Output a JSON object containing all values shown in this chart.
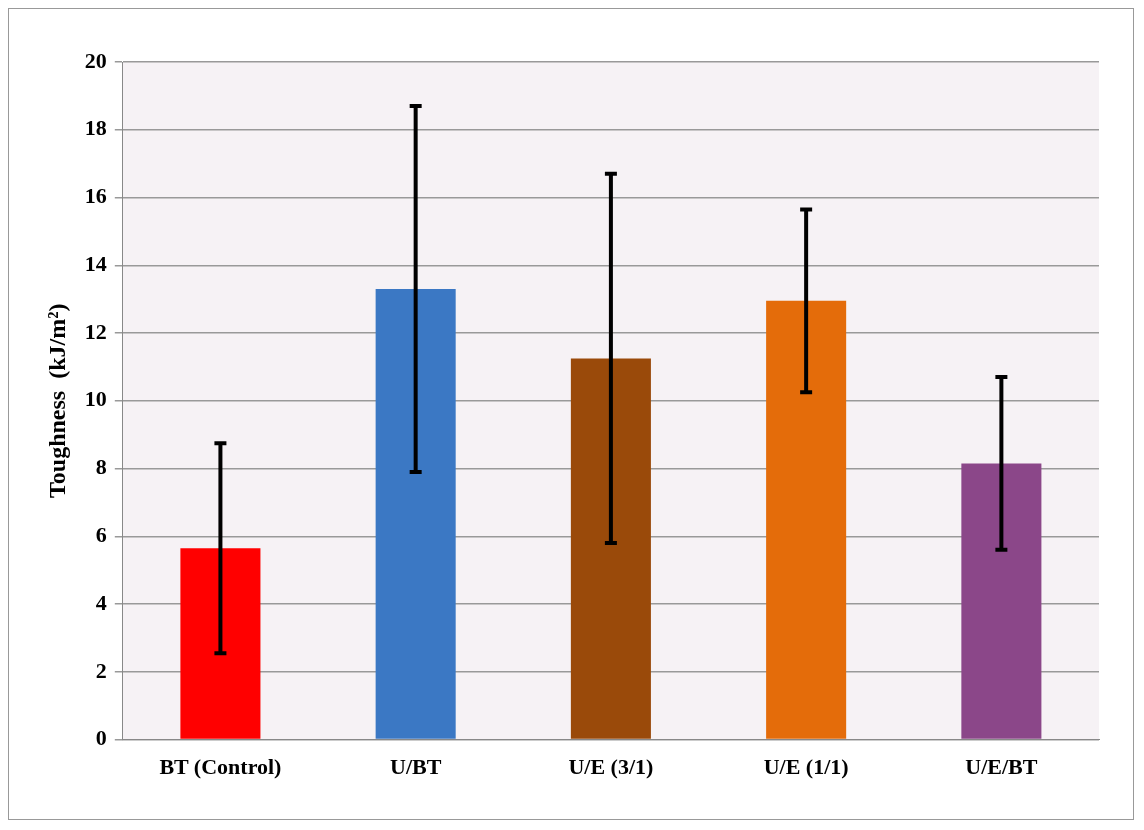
{
  "chart_data": {
    "type": "bar",
    "ylabel": "Toughness  (kJ/m²)",
    "categories": [
      "BT (Control)",
      "U/BT",
      "U/E (3/1)",
      "U/E (1/1)",
      "U/E/BT"
    ],
    "values": [
      5.65,
      13.3,
      11.25,
      12.95,
      8.15
    ],
    "errors": [
      3.1,
      5.4,
      5.45,
      2.7,
      2.55
    ],
    "colors": [
      "#ff0000",
      "#3b78c4",
      "#9a4a0a",
      "#e46c0a",
      "#8b4789"
    ],
    "ylim": [
      0,
      20
    ],
    "yticks": [
      0,
      2,
      4,
      6,
      8,
      10,
      12,
      14,
      16,
      18,
      20
    ],
    "grid": "y",
    "legend": false
  }
}
